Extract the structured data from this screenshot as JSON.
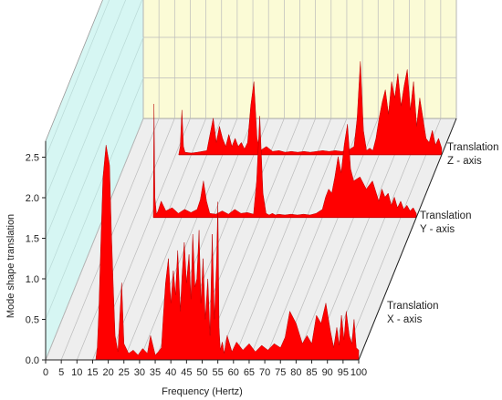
{
  "chart_data": {
    "type": "area",
    "xlabel": "Frequency (Hertz)",
    "ylabel": "Mode shape translation",
    "xlim": [
      0,
      100
    ],
    "ylim": [
      0,
      2.7
    ],
    "x_ticks": [
      "0",
      "5",
      "10",
      "15",
      "20",
      "25",
      "30",
      "35",
      "40",
      "45",
      "50",
      "55",
      "60",
      "65",
      "70",
      "75",
      "80",
      "85",
      "90",
      "95",
      "100"
    ],
    "y_ticks": [
      "0.0",
      "0.5",
      "1.0",
      "1.5",
      "2.0",
      "2.5"
    ],
    "grid": true,
    "colors": {
      "series": "#ff0000",
      "back_wall": "#fbfbd6",
      "side_wall": "#d6f6f3",
      "floor": "#eeeeee",
      "grid": "#bbbbbb"
    },
    "series": [
      {
        "name_line1": "Translation",
        "name_line2": "X - axis",
        "x": [
          16,
          16.5,
          17,
          17.6,
          18.3,
          19.3,
          20.4,
          21,
          21.6,
          22.2,
          23.1,
          24.3,
          25,
          26.5,
          28,
          29.5,
          31,
          32.5,
          33.5,
          35,
          36,
          37,
          37.6,
          38.3,
          39.2,
          40,
          40.8,
          41.5,
          42.2,
          43,
          43.6,
          44.3,
          45,
          45.8,
          46.4,
          47,
          47.7,
          48.3,
          49,
          49.6,
          50.3,
          51,
          51.8,
          52.5,
          53.2,
          53.9,
          54.6,
          55,
          55.4,
          55.8,
          56.4,
          57,
          58,
          59.5,
          61,
          63,
          65,
          67,
          69,
          71,
          73,
          75,
          76.5,
          78,
          80,
          82,
          83.5,
          85,
          86.5,
          88,
          89.5,
          91,
          92,
          93,
          93.8,
          94.5,
          95.3,
          96,
          97,
          97.8,
          98.5,
          99.2,
          100
        ],
        "y": [
          0,
          0.15,
          0.6,
          1.4,
          2.25,
          2.65,
          2.4,
          1.6,
          0.9,
          0.3,
          0.1,
          0.95,
          0.2,
          0.08,
          0.12,
          0.06,
          0.14,
          0.08,
          0.3,
          0.06,
          0.1,
          0.15,
          0.55,
          0.95,
          1.25,
          0.7,
          1.1,
          0.8,
          1.35,
          0.6,
          1.05,
          1.45,
          0.95,
          1.3,
          0.75,
          1.55,
          0.9,
          1.0,
          1.6,
          0.7,
          1.25,
          0.5,
          1.0,
          0.3,
          1.55,
          0.5,
          1.2,
          1.95,
          0.4,
          0.12,
          0.22,
          0.08,
          0.3,
          0.1,
          0.22,
          0.12,
          0.2,
          0.1,
          0.18,
          0.12,
          0.2,
          0.15,
          0.28,
          0.6,
          0.45,
          0.2,
          0.3,
          0.2,
          0.55,
          0.45,
          0.7,
          0.35,
          0.15,
          0.4,
          0.18,
          0.55,
          0.25,
          0.6,
          0.3,
          0.2,
          0.5,
          0.15,
          0.12
        ]
      },
      {
        "name_line1": "Translation",
        "name_line2": "Y - axis",
        "x": [
          16,
          16.2,
          16.5,
          17,
          17.5,
          18.5,
          20,
          22,
          24,
          26,
          28,
          30,
          31,
          32,
          33,
          34,
          36,
          38,
          40,
          42,
          44,
          46,
          48,
          49,
          50,
          51,
          52,
          53,
          54,
          55,
          56,
          58,
          60,
          62,
          64,
          66,
          68,
          70,
          71,
          72,
          73,
          74,
          75,
          76,
          77,
          78,
          79,
          80,
          82,
          84,
          86,
          88,
          89,
          90,
          91,
          92,
          93,
          94,
          95,
          96,
          97,
          98,
          99,
          100
        ],
        "y": [
          0,
          1.4,
          0.25,
          0.04,
          0.08,
          0.2,
          0.08,
          0.12,
          0.05,
          0.1,
          0.06,
          0.1,
          0.22,
          0.45,
          0.2,
          0.05,
          0.04,
          0.08,
          0.04,
          0.1,
          0.05,
          0.06,
          0.04,
          0.45,
          1.25,
          0.3,
          0.05,
          0.03,
          0.05,
          0.03,
          0.04,
          0.03,
          0.04,
          0.03,
          0.04,
          0.03,
          0.05,
          0.1,
          0.25,
          0.35,
          0.3,
          0.5,
          0.75,
          0.55,
          0.9,
          1.15,
          0.6,
          0.45,
          0.5,
          0.35,
          0.45,
          0.2,
          0.35,
          0.25,
          0.3,
          0.15,
          0.25,
          0.12,
          0.2,
          0.1,
          0.15,
          0.08,
          0.12,
          0.05
        ]
      },
      {
        "name_line1": "Translation",
        "name_line2": "Z - axis",
        "x": [
          16,
          16.5,
          17,
          17.5,
          18,
          20,
          22,
          25,
          26,
          27,
          28,
          29,
          30,
          31,
          32,
          33,
          34,
          35,
          36,
          37,
          38,
          39,
          40,
          41,
          42,
          44,
          46,
          48,
          50,
          52,
          54,
          56,
          58,
          60,
          62,
          64,
          66,
          68,
          70,
          72,
          73,
          74,
          75,
          76,
          77,
          78,
          79,
          80,
          81,
          82,
          83,
          84,
          85,
          86,
          87,
          88,
          89,
          90,
          91,
          92,
          93,
          94,
          95,
          96,
          97,
          98,
          99,
          100
        ],
        "y": [
          0,
          0.1,
          0.55,
          0.1,
          0.03,
          0.02,
          0.03,
          0.05,
          0.25,
          0.45,
          0.15,
          0.35,
          0.2,
          0.1,
          0.25,
          0.1,
          0.2,
          0.1,
          0.15,
          0.07,
          0.15,
          0.6,
          0.9,
          0.2,
          0.05,
          0.1,
          0.04,
          0.05,
          0.03,
          0.04,
          0.03,
          0.04,
          0.03,
          0.04,
          0.05,
          0.04,
          0.05,
          0.04,
          0.05,
          0.1,
          0.45,
          1.15,
          0.3,
          0.05,
          0.08,
          0.05,
          0.2,
          0.45,
          0.65,
          0.8,
          0.5,
          0.9,
          0.7,
          1.0,
          0.6,
          0.85,
          1.05,
          0.55,
          0.9,
          0.35,
          0.7,
          0.45,
          0.2,
          0.15,
          0.3,
          0.12,
          0.2,
          0.08
        ]
      }
    ]
  }
}
